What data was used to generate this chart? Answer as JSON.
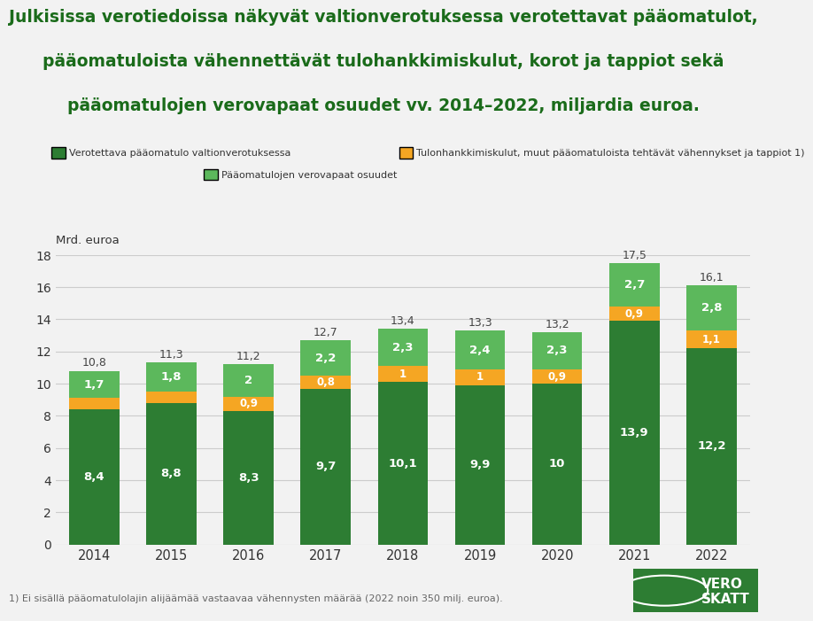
{
  "title_line1": "Julkisissa verotiedoissa näkyvät valtionverotuksessa verotettavat pääomatulot,",
  "title_line2": "pääomatuloista vähennettävät tulohankkimiskulut, korot ja tappiot sekä",
  "title_line3": "pääomatulojen verovapaat osuudet vv. 2014–2022, miljardia euroa.",
  "ylabel": "Mrd. euroa",
  "years": [
    "2014",
    "2015",
    "2016",
    "2017",
    "2018",
    "2019",
    "2020",
    "2021",
    "2022"
  ],
  "dark_green": [
    8.4,
    8.8,
    8.3,
    9.7,
    10.1,
    9.9,
    10.0,
    13.9,
    12.2
  ],
  "orange": [
    0.7,
    0.7,
    0.9,
    0.8,
    1.0,
    1.0,
    0.9,
    0.9,
    1.1
  ],
  "light_green": [
    1.7,
    1.8,
    2.0,
    2.2,
    2.3,
    2.4,
    2.3,
    2.7,
    2.8
  ],
  "dark_green_labels": [
    "8,4",
    "8,8",
    "8,3",
    "9,7",
    "10,1",
    "9,9",
    "10",
    "13,9",
    "12,2"
  ],
  "orange_labels": [
    "",
    "",
    "0,9",
    "0,8",
    "1",
    "1",
    "0,9",
    "0,9",
    "1,1"
  ],
  "light_green_labels": [
    "1,7",
    "1,8",
    "2",
    "2,2",
    "2,3",
    "2,4",
    "2,3",
    "2,7",
    "2,8"
  ],
  "total_labels": [
    "10,8",
    "11,3",
    "11,2",
    "12,7",
    "13,4",
    "13,3",
    "13,2",
    "17,5",
    "16,1"
  ],
  "totals": [
    10.8,
    11.3,
    11.2,
    12.7,
    13.4,
    13.3,
    13.2,
    17.5,
    16.1
  ],
  "color_dark_green": "#2d7d33",
  "color_orange": "#f5a623",
  "color_light_green": "#5cb85c",
  "legend_label_dark": "Verotettava pääomatulo valtionverotuksessa",
  "legend_label_orange": "Tulonhankkimiskulut, muut pääomatuloista tehtävät vähennykset ja tappiot 1)",
  "legend_label_light": "Pääomatulojen verovapaat osuudet",
  "footnote": "1) Ei sisällä pääomatulolajin alijäämää vastaavaa vähennysten määrää (2022 noin 350 milj. euroa).",
  "ylim": [
    0,
    18
  ],
  "yticks": [
    0,
    2,
    4,
    6,
    8,
    10,
    12,
    14,
    16,
    18
  ],
  "background_color": "#f2f2f2",
  "title_color": "#1a6b1a",
  "bar_width": 0.65
}
